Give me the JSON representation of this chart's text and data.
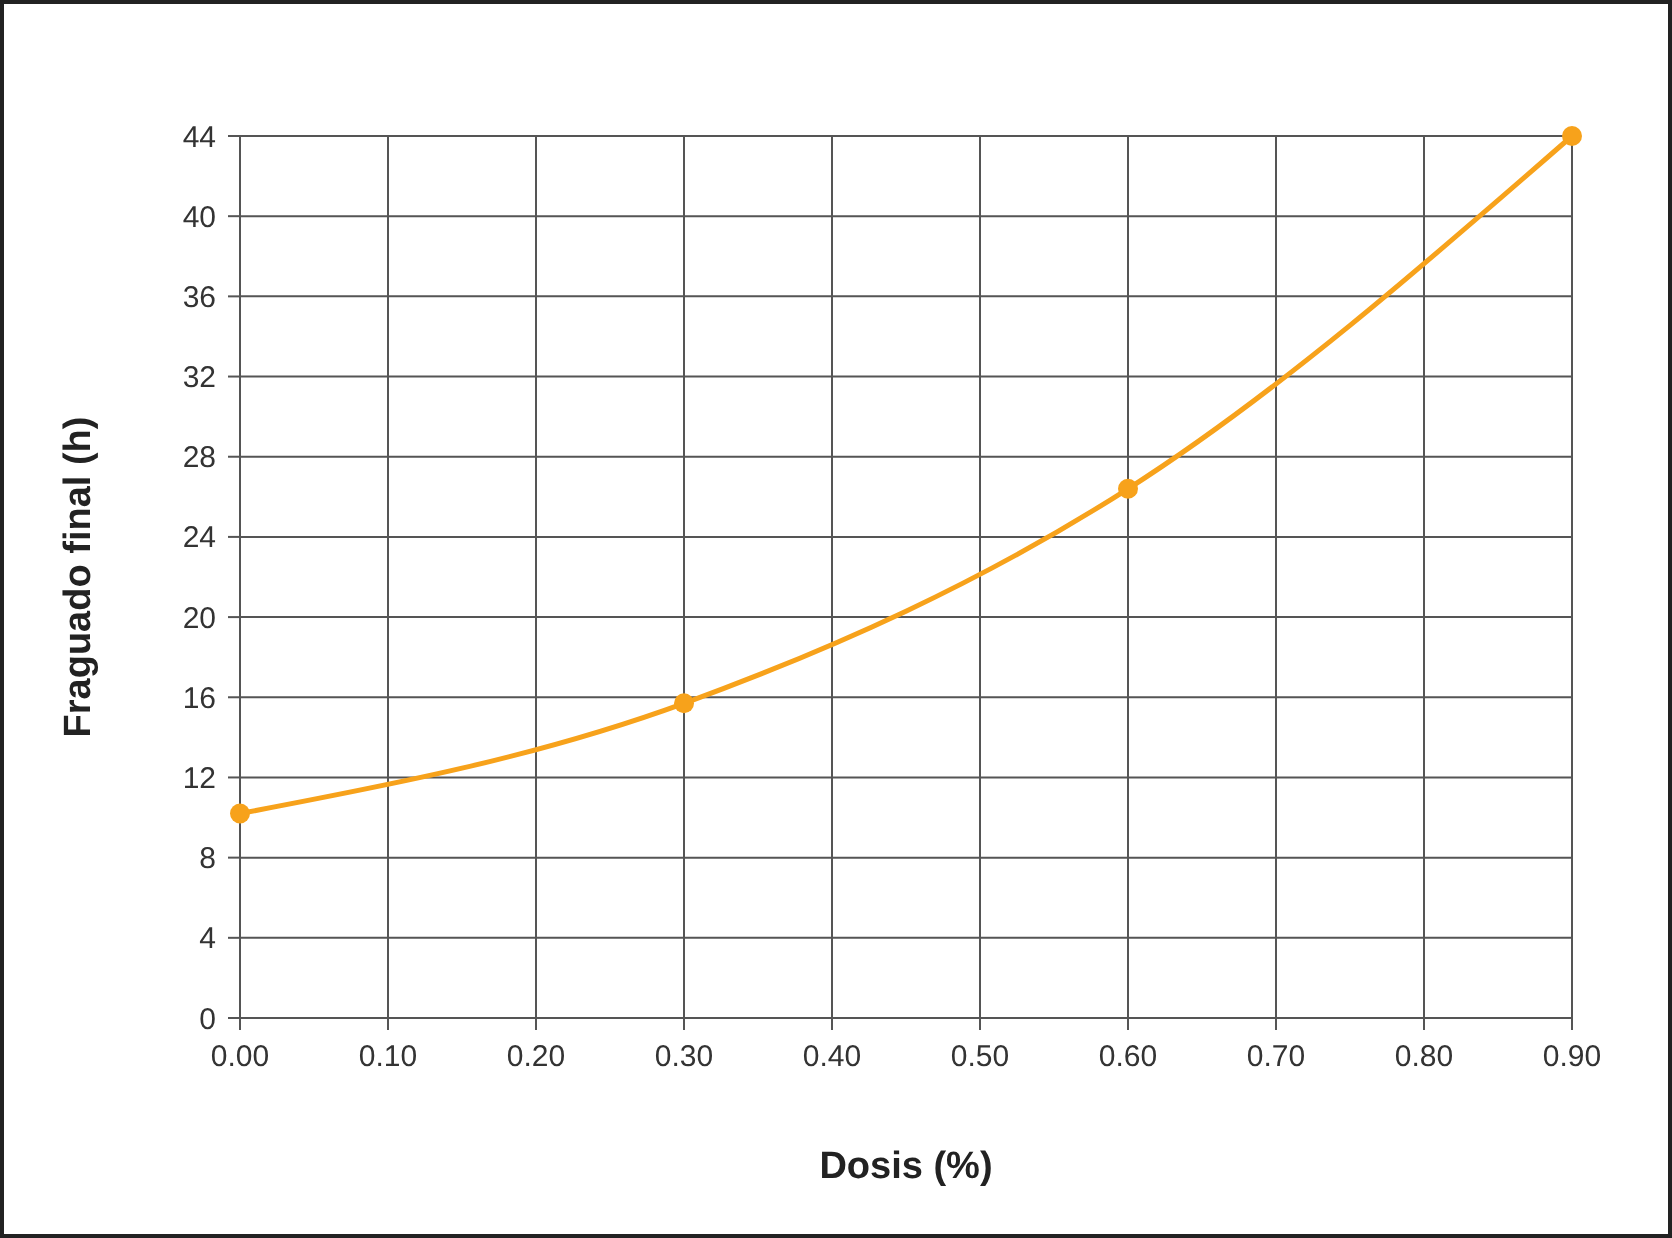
{
  "chart_data": {
    "type": "line",
    "xlabel": "Dosis (%)",
    "ylabel": "Fraguado final (h)",
    "x": [
      0,
      0.3,
      0.6,
      0.9
    ],
    "series": [
      {
        "color": "#f7a21b",
        "values": [
          10.2,
          15.7,
          26.4,
          44
        ]
      }
    ],
    "xlim": [
      0,
      0.9
    ],
    "xticks": [
      {
        "value": 0,
        "label": "0.00"
      },
      {
        "value": 0.1,
        "label": "0.10"
      },
      {
        "value": 0.2,
        "label": "0.20"
      },
      {
        "value": 0.3,
        "label": "0.30"
      },
      {
        "value": 0.4,
        "label": "0.40"
      },
      {
        "value": 0.5,
        "label": "0.50"
      },
      {
        "value": 0.6,
        "label": "0.60"
      },
      {
        "value": 0.7,
        "label": "0.70"
      },
      {
        "value": 0.8,
        "label": "0.80"
      },
      {
        "value": 0.9,
        "label": "0.90"
      }
    ],
    "ylim": [
      0,
      44
    ],
    "yticks": [
      0,
      4,
      8,
      12,
      16,
      20,
      24,
      28,
      32,
      36,
      40,
      44
    ],
    "grid": true,
    "marker": "circle",
    "line_style": "solid"
  }
}
